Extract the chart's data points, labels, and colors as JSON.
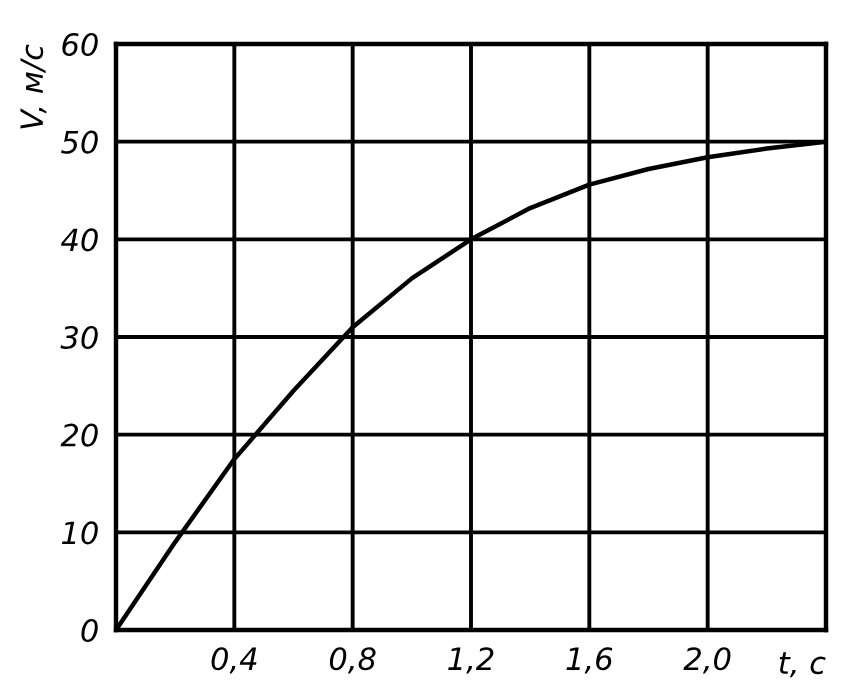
{
  "chart_data": {
    "type": "line",
    "xlabel": "t, c",
    "ylabel": "V, м/с",
    "x": [
      0,
      0.2,
      0.4,
      0.6,
      0.8,
      1.0,
      1.2,
      1.4,
      1.6,
      1.8,
      2.0,
      2.2,
      2.4
    ],
    "values": [
      0,
      9,
      17.5,
      24.5,
      31,
      36,
      40,
      43.2,
      45.6,
      47.2,
      48.4,
      49.3,
      50
    ],
    "color": "#000000",
    "marker": "none",
    "line_style": "solid",
    "xlim": [
      0,
      2.4
    ],
    "ylim": [
      0,
      60
    ],
    "xticks": [
      {
        "value": 0,
        "label": null
      },
      {
        "value": 0.4,
        "label": "0,4"
      },
      {
        "value": 0.8,
        "label": "0,8"
      },
      {
        "value": 1.2,
        "label": "1,2"
      },
      {
        "value": 1.6,
        "label": "1,6"
      },
      {
        "value": 2.0,
        "label": "2,0"
      },
      {
        "value": 2.4,
        "label": null
      }
    ],
    "yticks": [
      0,
      10,
      20,
      30,
      40,
      50,
      60
    ],
    "grid": true,
    "legend": false
  }
}
